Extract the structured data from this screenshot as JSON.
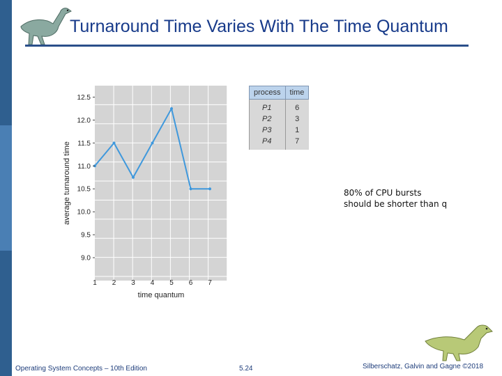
{
  "slide": {
    "title": "Turnaround Time Varies With The Time Quantum",
    "note_lines": [
      "80% of CPU bursts",
      "should be shorter than q"
    ]
  },
  "process_table": {
    "headers": [
      "process",
      "time"
    ],
    "rows": [
      {
        "process": "P1",
        "time": "6"
      },
      {
        "process": "P2",
        "time": "3"
      },
      {
        "process": "P3",
        "time": "1"
      },
      {
        "process": "P4",
        "time": "7"
      }
    ]
  },
  "footer": {
    "left": "Operating System Concepts – 10th Edition",
    "middle": "5.24",
    "right": "Silberschatz, Galvin and Gagne ©2018"
  },
  "colors": {
    "sidebar": "#2f5f8f",
    "title": "#173a8a",
    "plot_bg": "#d4d4d4",
    "line": "#3f98dc",
    "table_header": "#bcd3ec"
  },
  "chart_data": {
    "type": "line",
    "xlabel": "time quantum",
    "ylabel": "average turnaround time",
    "x": [
      1,
      2,
      3,
      4,
      5,
      6,
      7
    ],
    "y": [
      11.0,
      11.5,
      10.75,
      11.5,
      12.25,
      10.5,
      10.5
    ],
    "yticks": [
      9.0,
      9.5,
      10.0,
      10.5,
      11.0,
      11.5,
      12.0,
      12.5
    ],
    "ylim": [
      8.5,
      12.75
    ],
    "grid": true
  }
}
